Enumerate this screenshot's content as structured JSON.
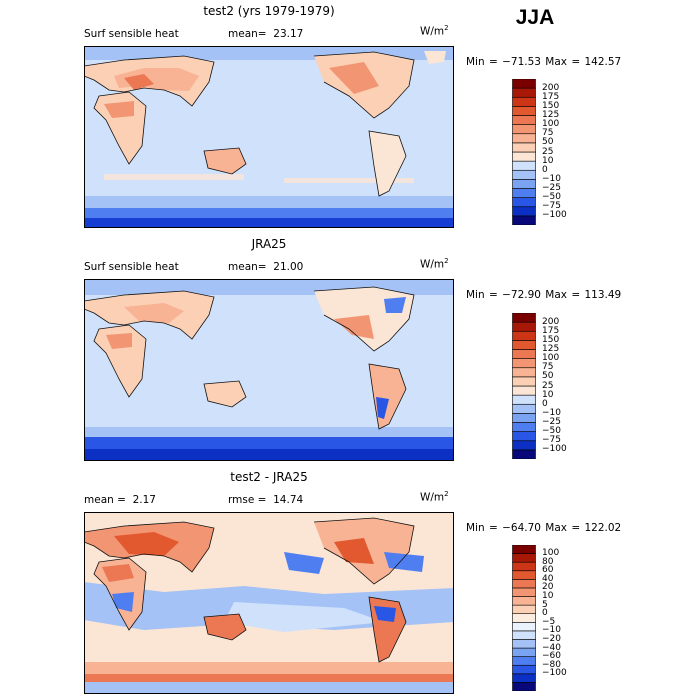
{
  "season": "JJA",
  "panels": [
    {
      "id": "model",
      "title": "test2 (yrs 1979-1979)",
      "left_label": "Surf sensible heat",
      "stat1_label": "mean=",
      "stat1_value": "23.17",
      "stat2_label": "",
      "stat2_value": "",
      "units_base": "W/m",
      "units_exp": "2",
      "minmax": "Min = −71.53 Max = 142.57",
      "colorbar": {
        "colors": [
          "#08087a",
          "#0c2fc4",
          "#2a56e6",
          "#4f7ef0",
          "#7aa3f2",
          "#a4c2f5",
          "#cfe1fb",
          "#fbe6d6",
          "#fcd0b5",
          "#f8b294",
          "#f29573",
          "#ec7753",
          "#e2582f",
          "#cc3515",
          "#a81806",
          "#7a0000"
        ],
        "labels": [
          "200",
          "175",
          "150",
          "125",
          "100",
          "75",
          "50",
          "25",
          "10",
          "0",
          "−10",
          "−25",
          "−50",
          "−75",
          "−100"
        ]
      }
    },
    {
      "id": "obs",
      "title": "JRA25",
      "left_label": "Surf sensible heat",
      "stat1_label": "mean=",
      "stat1_value": "21.00",
      "stat2_label": "",
      "stat2_value": "",
      "units_base": "W/m",
      "units_exp": "2",
      "minmax": "Min = −72.90 Max = 113.49",
      "colorbar": {
        "colors": [
          "#08087a",
          "#0c2fc4",
          "#2a56e6",
          "#4f7ef0",
          "#7aa3f2",
          "#a4c2f5",
          "#cfe1fb",
          "#fbe6d6",
          "#fcd0b5",
          "#f8b294",
          "#f29573",
          "#ec7753",
          "#e2582f",
          "#cc3515",
          "#a81806",
          "#7a0000"
        ],
        "labels": [
          "200",
          "175",
          "150",
          "125",
          "100",
          "75",
          "50",
          "25",
          "10",
          "0",
          "−10",
          "−25",
          "−50",
          "−75",
          "−100"
        ]
      }
    },
    {
      "id": "diff",
      "title": "test2 - JRA25",
      "left_label": "",
      "stat1_label": "mean =",
      "stat1_value": "2.17",
      "stat2_label": "rmse =",
      "stat2_value": "14.74",
      "units_base": "W/m",
      "units_exp": "2",
      "minmax": "Min = −64.70 Max = 122.02",
      "colorbar": {
        "colors": [
          "#08087a",
          "#0c2fc4",
          "#2a56e6",
          "#4f7ef0",
          "#7aa3f2",
          "#a4c2f5",
          "#cfe1fb",
          "#eaf2fd",
          "#fdece0",
          "#fcd0b5",
          "#f8b294",
          "#f29573",
          "#ec7753",
          "#e2582f",
          "#cc3515",
          "#a81806",
          "#7a0000"
        ],
        "labels": [
          "100",
          "80",
          "60",
          "40",
          "20",
          "10",
          "5",
          "0",
          "−5",
          "−10",
          "−20",
          "−40",
          "−60",
          "−80",
          "−100"
        ]
      }
    }
  ]
}
